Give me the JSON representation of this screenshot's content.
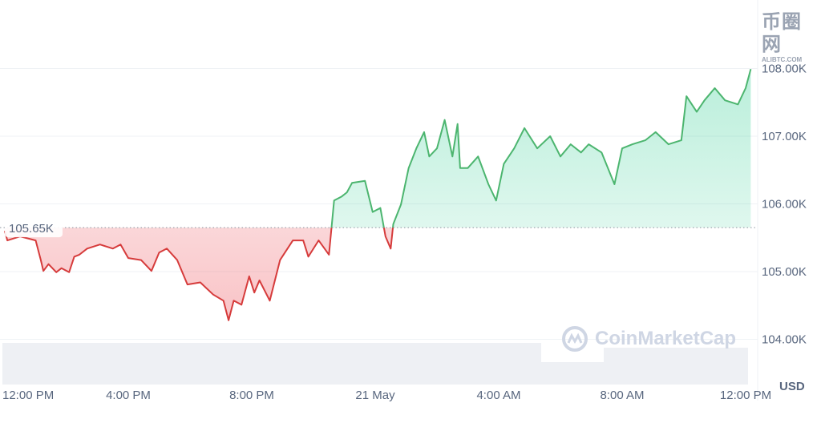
{
  "chart_data": {
    "type": "line",
    "baseline": {
      "value": 105.65,
      "label": "105.65K"
    },
    "y_ticks": [
      {
        "v": 104,
        "label": "104.00K"
      },
      {
        "v": 105,
        "label": "105.00K"
      },
      {
        "v": 106,
        "label": "106.00K"
      },
      {
        "v": 107,
        "label": "107.00K"
      },
      {
        "v": 108,
        "label": "108.00K"
      }
    ],
    "ylim": [
      103.4,
      109.0
    ],
    "y_unit": "USD",
    "x_ticks": [
      {
        "t": "20 May 12:00",
        "label": "12:00 PM"
      },
      {
        "t": "20 May 16:00",
        "label": "4:00 PM"
      },
      {
        "t": "20 May 20:00",
        "label": "8:00 PM"
      },
      {
        "t": "21 May 00:00",
        "label": "21 May"
      },
      {
        "t": "21 May 04:00",
        "label": "4:00 AM"
      },
      {
        "t": "21 May 08:00",
        "label": "8:00 AM"
      },
      {
        "t": "21 May 12:00",
        "label": "12:00 PM"
      }
    ],
    "colors": {
      "up": "#16c784",
      "up_line": "#4cb56f",
      "down": "#ea3943",
      "down_line": "#d63b3b",
      "grid": "#eff2f5",
      "volume": "#eef0f4"
    },
    "grid": true,
    "points": [
      [
        "20 May 12:00",
        105.6
      ],
      [
        "20 May 12:05",
        105.46
      ],
      [
        "20 May 12:30",
        105.52
      ],
      [
        "20 May 13:00",
        105.46
      ],
      [
        "20 May 13:10",
        105.17
      ],
      [
        "20 May 13:15",
        105.01
      ],
      [
        "20 May 13:25",
        105.11
      ],
      [
        "20 May 13:40",
        104.99
      ],
      [
        "20 May 13:50",
        105.05
      ],
      [
        "20 May 14:05",
        104.99
      ],
      [
        "20 May 14:15",
        105.22
      ],
      [
        "20 May 14:25",
        105.25
      ],
      [
        "20 May 14:40",
        105.34
      ],
      [
        "20 May 15:05",
        105.4
      ],
      [
        "20 May 15:30",
        105.34
      ],
      [
        "20 May 15:45",
        105.4
      ],
      [
        "20 May 16:00",
        105.2
      ],
      [
        "20 May 16:25",
        105.17
      ],
      [
        "20 May 16:45",
        105.01
      ],
      [
        "20 May 17:00",
        105.28
      ],
      [
        "20 May 17:15",
        105.34
      ],
      [
        "20 May 17:35",
        105.17
      ],
      [
        "20 May 17:55",
        104.81
      ],
      [
        "20 May 18:20",
        104.84
      ],
      [
        "20 May 18:45",
        104.66
      ],
      [
        "20 May 19:05",
        104.57
      ],
      [
        "20 May 19:15",
        104.28
      ],
      [
        "20 May 19:25",
        104.57
      ],
      [
        "20 May 19:40",
        104.51
      ],
      [
        "20 May 19:55",
        104.93
      ],
      [
        "20 May 20:05",
        104.69
      ],
      [
        "20 May 20:15",
        104.87
      ],
      [
        "20 May 20:35",
        104.57
      ],
      [
        "20 May 20:55",
        105.17
      ],
      [
        "20 May 21:20",
        105.46
      ],
      [
        "20 May 21:40",
        105.46
      ],
      [
        "20 May 21:50",
        105.22
      ],
      [
        "20 May 22:10",
        105.46
      ],
      [
        "20 May 22:30",
        105.25
      ],
      [
        "20 May 22:40",
        106.05
      ],
      [
        "20 May 22:55",
        106.11
      ],
      [
        "20 May 23:05",
        106.17
      ],
      [
        "20 May 23:15",
        106.31
      ],
      [
        "20 May 23:40",
        106.34
      ],
      [
        "20 May 23:55",
        105.88
      ],
      [
        "21 May 00:10",
        105.94
      ],
      [
        "21 May 00:20",
        105.52
      ],
      [
        "21 May 00:30",
        105.34
      ],
      [
        "21 May 00:35",
        105.7
      ],
      [
        "21 May 00:50",
        105.99
      ],
      [
        "21 May 01:05",
        106.53
      ],
      [
        "21 May 01:20",
        106.82
      ],
      [
        "21 May 01:35",
        107.06
      ],
      [
        "21 May 01:45",
        106.7
      ],
      [
        "21 May 02:00",
        106.82
      ],
      [
        "21 May 02:15",
        107.24
      ],
      [
        "21 May 02:30",
        106.7
      ],
      [
        "21 May 02:40",
        107.18
      ],
      [
        "21 May 02:45",
        106.53
      ],
      [
        "21 May 03:00",
        106.53
      ],
      [
        "21 May 03:20",
        106.7
      ],
      [
        "21 May 03:40",
        106.29
      ],
      [
        "21 May 03:55",
        106.05
      ],
      [
        "21 May 04:10",
        106.59
      ],
      [
        "21 May 04:30",
        106.82
      ],
      [
        "21 May 04:50",
        107.12
      ],
      [
        "21 May 05:15",
        106.82
      ],
      [
        "21 May 05:40",
        107.0
      ],
      [
        "21 May 06:00",
        106.7
      ],
      [
        "21 May 06:20",
        106.88
      ],
      [
        "21 May 06:40",
        106.76
      ],
      [
        "21 May 06:55",
        106.88
      ],
      [
        "21 May 07:20",
        106.76
      ],
      [
        "21 May 07:45",
        106.29
      ],
      [
        "21 May 08:00",
        106.82
      ],
      [
        "21 May 08:20",
        106.88
      ],
      [
        "21 May 08:45",
        106.94
      ],
      [
        "21 May 09:05",
        107.06
      ],
      [
        "21 May 09:30",
        106.88
      ],
      [
        "21 May 09:55",
        106.94
      ],
      [
        "21 May 10:05",
        107.59
      ],
      [
        "21 May 10:25",
        107.36
      ],
      [
        "21 May 10:40",
        107.53
      ],
      [
        "21 May 11:00",
        107.71
      ],
      [
        "21 May 11:20",
        107.53
      ],
      [
        "21 May 11:45",
        107.47
      ],
      [
        "21 May 12:00",
        107.71
      ],
      [
        "21 May 12:10",
        107.99
      ]
    ]
  },
  "watermark": {
    "brand": "CoinMarketCap",
    "site": "币圈网",
    "site_url_text": "ALIBTC.COM"
  },
  "currency_label": "USD"
}
